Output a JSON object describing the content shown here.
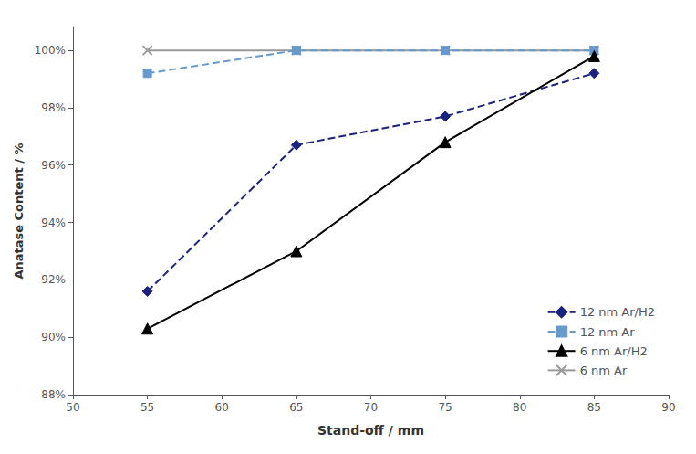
{
  "chart_data": {
    "type": "line",
    "xlabel": "Stand-off / mm",
    "ylabel": "Anatase Content / %",
    "x": [
      55,
      65,
      75,
      85
    ],
    "xlim": [
      50,
      90
    ],
    "xticks": [
      50,
      55,
      60,
      65,
      70,
      75,
      80,
      85,
      90
    ],
    "ylim": [
      88,
      100.8
    ],
    "yticks": [
      {
        "value": 88,
        "label": "88%"
      },
      {
        "value": 90,
        "label": "90%"
      },
      {
        "value": 92,
        "label": "92%"
      },
      {
        "value": 94,
        "label": "94%"
      },
      {
        "value": 96,
        "label": "96%"
      },
      {
        "value": 98,
        "label": "98%"
      },
      {
        "value": 100,
        "label": "100%"
      }
    ],
    "grid": false,
    "legend": "lower right",
    "series": [
      {
        "name": "12 nm Ar/H2",
        "color": "#1A237E",
        "line_style": "dashed",
        "marker": "diamond",
        "values": [
          91.6,
          96.7,
          97.7,
          99.2
        ]
      },
      {
        "name": "12 nm Ar",
        "color": "#6699CC",
        "line_style": "dashed",
        "marker": "square",
        "values": [
          99.2,
          100.0,
          100.0,
          100.0
        ]
      },
      {
        "name": "6 nm Ar/H2",
        "color": "#000000",
        "line_style": "solid",
        "marker": "triangle",
        "values": [
          90.3,
          93.0,
          96.8,
          99.8
        ]
      },
      {
        "name": "6 nm Ar",
        "color": "#999999",
        "line_style": "solid",
        "marker": "x",
        "values": [
          100.0,
          100.0,
          100.0,
          100.0
        ]
      }
    ]
  }
}
